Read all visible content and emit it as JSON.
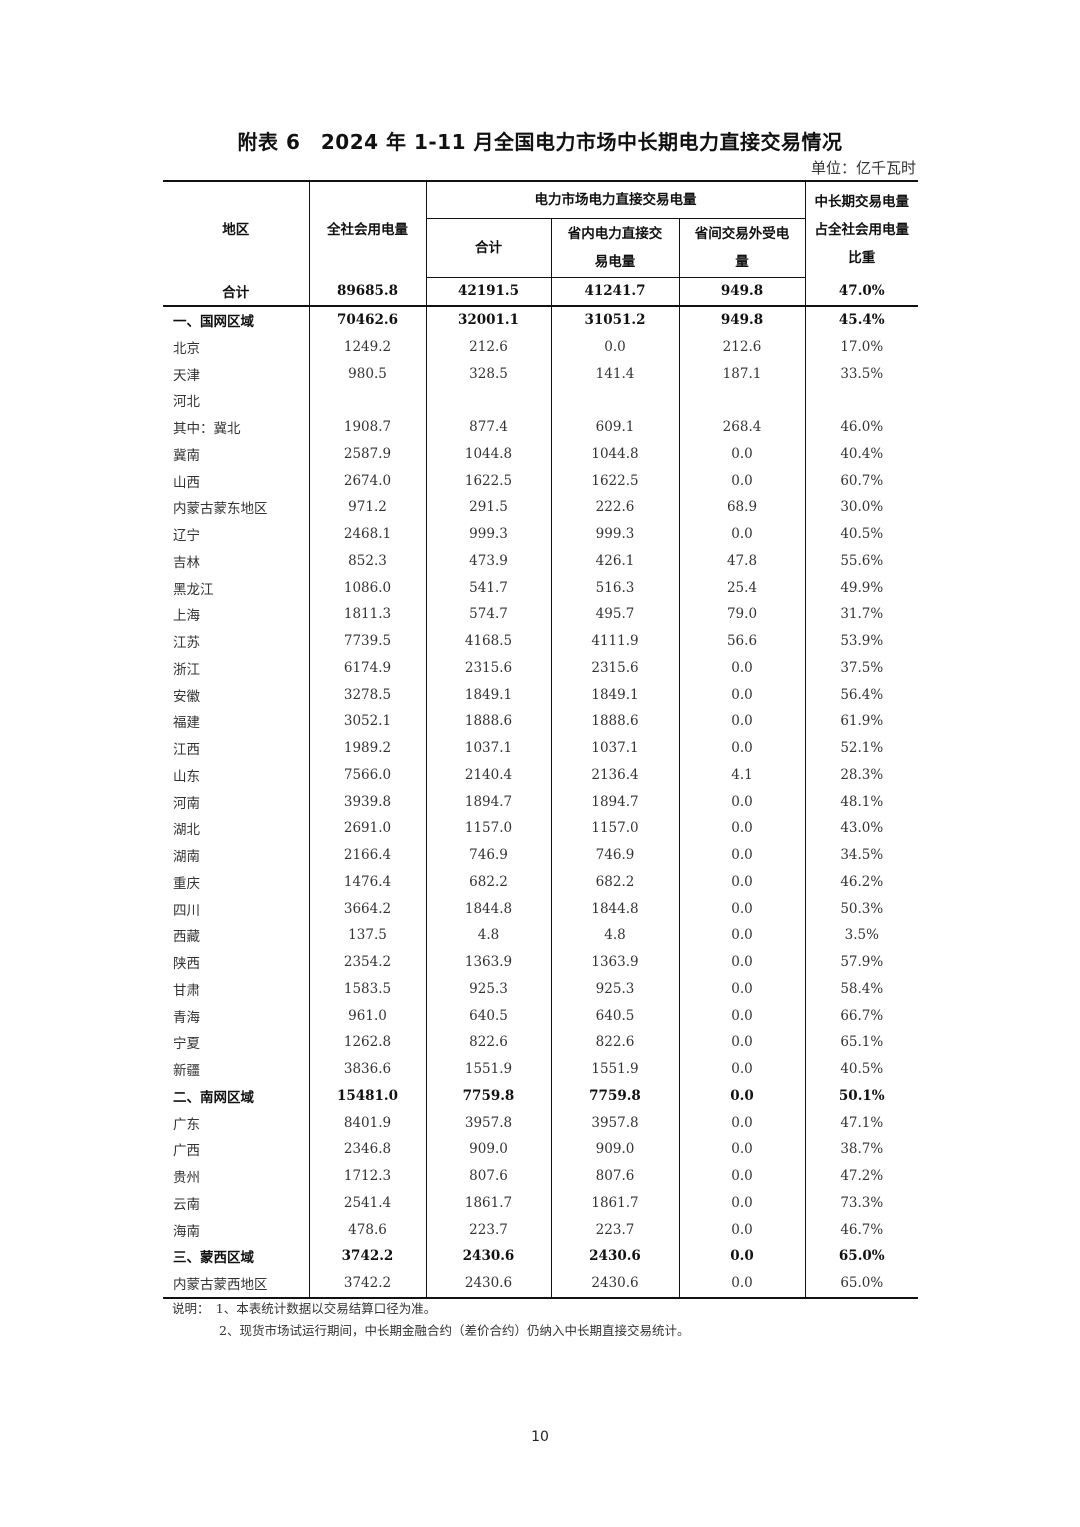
{
  "title": "附表 6　2024 年 1-11 月全国电力市场中长期电力直接交易情况",
  "unit": "单位：亿千瓦时",
  "headers": {
    "region": "地区",
    "total_consumption": "全社会用电量",
    "direct_trade_group": "电力市场电力直接交易电量",
    "subtotal": "合计",
    "intra_province": "省内电力直接交易电量",
    "inter_province": "省间交易外受电量",
    "share": "中长期交易电量占全社会用电量比重"
  },
  "total_row": [
    "合计",
    "89685.8",
    "42191.5",
    "41241.7",
    "949.8",
    "47.0%"
  ],
  "rows": [
    {
      "bold": true,
      "cells": [
        "一、国网区域",
        "70462.6",
        "32001.1",
        "31051.2",
        "949.8",
        "45.4%"
      ]
    },
    {
      "cells": [
        "北京",
        "1249.2",
        "212.6",
        "0.0",
        "212.6",
        "17.0%"
      ]
    },
    {
      "cells": [
        "天津",
        "980.5",
        "328.5",
        "141.4",
        "187.1",
        "33.5%"
      ]
    },
    {
      "cells": [
        "河北",
        "",
        "",
        "",
        "",
        ""
      ]
    },
    {
      "cells": [
        "其中：冀北",
        "1908.7",
        "877.4",
        "609.1",
        "268.4",
        "46.0%"
      ]
    },
    {
      "cells": [
        "冀南",
        "2587.9",
        "1044.8",
        "1044.8",
        "0.0",
        "40.4%"
      ]
    },
    {
      "cells": [
        "山西",
        "2674.0",
        "1622.5",
        "1622.5",
        "0.0",
        "60.7%"
      ]
    },
    {
      "cells": [
        "内蒙古蒙东地区",
        "971.2",
        "291.5",
        "222.6",
        "68.9",
        "30.0%"
      ]
    },
    {
      "cells": [
        "辽宁",
        "2468.1",
        "999.3",
        "999.3",
        "0.0",
        "40.5%"
      ]
    },
    {
      "cells": [
        "吉林",
        "852.3",
        "473.9",
        "426.1",
        "47.8",
        "55.6%"
      ]
    },
    {
      "cells": [
        "黑龙江",
        "1086.0",
        "541.7",
        "516.3",
        "25.4",
        "49.9%"
      ]
    },
    {
      "cells": [
        "上海",
        "1811.3",
        "574.7",
        "495.7",
        "79.0",
        "31.7%"
      ]
    },
    {
      "cells": [
        "江苏",
        "7739.5",
        "4168.5",
        "4111.9",
        "56.6",
        "53.9%"
      ]
    },
    {
      "cells": [
        "浙江",
        "6174.9",
        "2315.6",
        "2315.6",
        "0.0",
        "37.5%"
      ]
    },
    {
      "cells": [
        "安徽",
        "3278.5",
        "1849.1",
        "1849.1",
        "0.0",
        "56.4%"
      ]
    },
    {
      "cells": [
        "福建",
        "3052.1",
        "1888.6",
        "1888.6",
        "0.0",
        "61.9%"
      ]
    },
    {
      "cells": [
        "江西",
        "1989.2",
        "1037.1",
        "1037.1",
        "0.0",
        "52.1%"
      ]
    },
    {
      "cells": [
        "山东",
        "7566.0",
        "2140.4",
        "2136.4",
        "4.1",
        "28.3%"
      ]
    },
    {
      "cells": [
        "河南",
        "3939.8",
        "1894.7",
        "1894.7",
        "0.0",
        "48.1%"
      ]
    },
    {
      "cells": [
        "湖北",
        "2691.0",
        "1157.0",
        "1157.0",
        "0.0",
        "43.0%"
      ]
    },
    {
      "cells": [
        "湖南",
        "2166.4",
        "746.9",
        "746.9",
        "0.0",
        "34.5%"
      ]
    },
    {
      "cells": [
        "重庆",
        "1476.4",
        "682.2",
        "682.2",
        "0.0",
        "46.2%"
      ]
    },
    {
      "cells": [
        "四川",
        "3664.2",
        "1844.8",
        "1844.8",
        "0.0",
        "50.3%"
      ]
    },
    {
      "cells": [
        "西藏",
        "137.5",
        "4.8",
        "4.8",
        "0.0",
        "3.5%"
      ]
    },
    {
      "cells": [
        "陕西",
        "2354.2",
        "1363.9",
        "1363.9",
        "0.0",
        "57.9%"
      ]
    },
    {
      "cells": [
        "甘肃",
        "1583.5",
        "925.3",
        "925.3",
        "0.0",
        "58.4%"
      ]
    },
    {
      "cells": [
        "青海",
        "961.0",
        "640.5",
        "640.5",
        "0.0",
        "66.7%"
      ]
    },
    {
      "cells": [
        "宁夏",
        "1262.8",
        "822.6",
        "822.6",
        "0.0",
        "65.1%"
      ]
    },
    {
      "cells": [
        "新疆",
        "3836.6",
        "1551.9",
        "1551.9",
        "0.0",
        "40.5%"
      ]
    },
    {
      "bold": true,
      "cells": [
        "二、南网区域",
        "15481.0",
        "7759.8",
        "7759.8",
        "0.0",
        "50.1%"
      ]
    },
    {
      "cells": [
        "广东",
        "8401.9",
        "3957.8",
        "3957.8",
        "0.0",
        "47.1%"
      ]
    },
    {
      "cells": [
        "广西",
        "2346.8",
        "909.0",
        "909.0",
        "0.0",
        "38.7%"
      ]
    },
    {
      "cells": [
        "贵州",
        "1712.3",
        "807.6",
        "807.6",
        "0.0",
        "47.2%"
      ]
    },
    {
      "cells": [
        "云南",
        "2541.4",
        "1861.7",
        "1861.7",
        "0.0",
        "73.3%"
      ]
    },
    {
      "cells": [
        "海南",
        "478.6",
        "223.7",
        "223.7",
        "0.0",
        "46.7%"
      ]
    },
    {
      "bold": true,
      "cells": [
        "三、蒙西区域",
        "3742.2",
        "2430.6",
        "2430.6",
        "0.0",
        "65.0%"
      ]
    },
    {
      "cells": [
        "内蒙古蒙西地区",
        "3742.2",
        "2430.6",
        "2430.6",
        "0.0",
        "65.0%"
      ]
    }
  ],
  "notes": {
    "note1": "说明：　1、本表统计数据以交易结算口径为准。",
    "note2": "2、现货市场试运行期间，中长期金融合约（差价合约）仍纳入中长期直接交易统计。"
  },
  "page_number": "10"
}
